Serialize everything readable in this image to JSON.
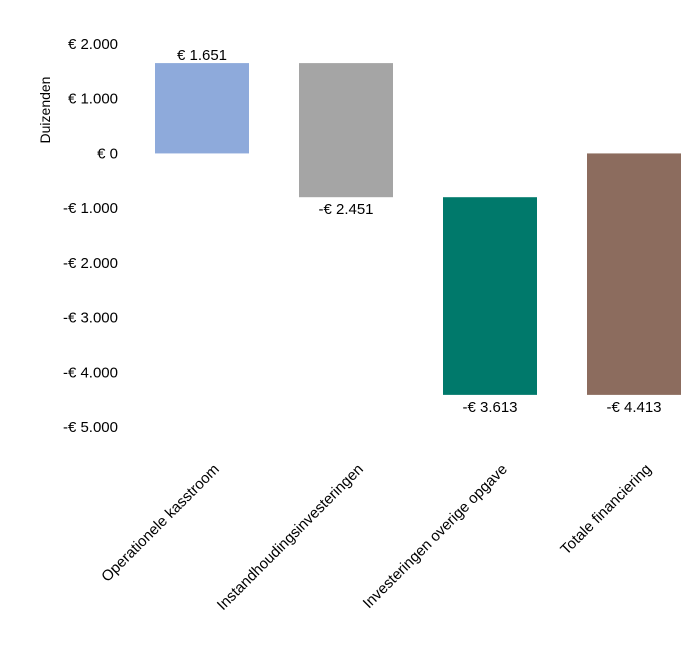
{
  "chart_data": {
    "type": "bar",
    "subtype": "waterfall",
    "ylabel": "Duizenden",
    "ylim": [
      -5000,
      2000
    ],
    "yticks": [
      2000,
      1000,
      0,
      -1000,
      -2000,
      -3000,
      -4000,
      -5000
    ],
    "ytick_labels": [
      "€ 2.000",
      "€ 1.000",
      "€ 0",
      "-€ 1.000",
      "-€ 2.000",
      "-€ 3.000",
      "-€ 4.000",
      "-€ 5.000"
    ],
    "grid": false,
    "categories": [
      "Operationele kasstroom",
      "Instandhoudingsinvesteringen",
      "Investeringen overige opgave",
      "Totale financiering"
    ],
    "bars": [
      {
        "start": 0,
        "end": 1651,
        "label": "€ 1.651",
        "color": "#8eaadb"
      },
      {
        "start": 1651,
        "end": -800,
        "label": "-€ 2.451",
        "color": "#a5a5a5"
      },
      {
        "start": -800,
        "end": -4413,
        "label": "-€ 3.613",
        "color": "#00796b"
      },
      {
        "start": 0,
        "end": -4413,
        "label": "-€ 4.413",
        "color": "#8c6c5e"
      }
    ]
  }
}
